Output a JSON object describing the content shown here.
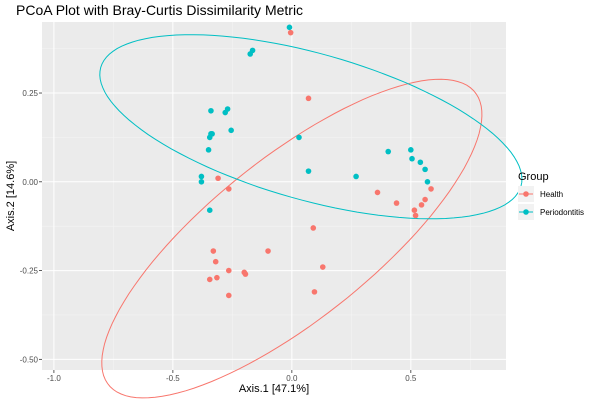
{
  "chart_data": {
    "type": "scatter",
    "title": "PCoA Plot with Bray-Curtis Dissimilarity Metric",
    "xlabel": "Axis.1   [47.1%]",
    "ylabel": "Axis.2   [14.6%]",
    "xlim": [
      -1.05,
      0.9
    ],
    "ylim": [
      -0.53,
      0.45
    ],
    "x_ticks": [
      -1.0,
      -0.5,
      0.0,
      0.5
    ],
    "x_tick_labels": [
      "-1.0",
      "-0.5",
      "0.0",
      "0.5"
    ],
    "y_ticks": [
      -0.5,
      -0.25,
      0.0,
      0.25
    ],
    "y_tick_labels": [
      "-0.50",
      "-0.25",
      "0.00",
      "0.25"
    ],
    "grid": true,
    "legend": {
      "title": "Group",
      "position": "right"
    },
    "series": [
      {
        "name": "Health",
        "color": "#F8766D",
        "points": [
          [
            -0.005,
            0.42
          ],
          [
            0.07,
            0.235
          ],
          [
            -0.31,
            0.01
          ],
          [
            -0.265,
            -0.02
          ],
          [
            0.09,
            -0.13
          ],
          [
            0.36,
            -0.03
          ],
          [
            0.44,
            -0.06
          ],
          [
            0.515,
            -0.08
          ],
          [
            0.545,
            -0.065
          ],
          [
            0.56,
            -0.05
          ],
          [
            0.585,
            -0.02
          ],
          [
            0.52,
            -0.095
          ],
          [
            -0.33,
            -0.195
          ],
          [
            -0.32,
            -0.225
          ],
          [
            -0.265,
            -0.25
          ],
          [
            -0.2,
            -0.255
          ],
          [
            -0.195,
            -0.26
          ],
          [
            -0.1,
            -0.195
          ],
          [
            -0.345,
            -0.275
          ],
          [
            -0.315,
            -0.27
          ],
          [
            -0.265,
            -0.32
          ],
          [
            0.13,
            -0.24
          ],
          [
            0.095,
            -0.31
          ]
        ],
        "ellipse": {
          "cx": 0.0,
          "cy": -0.16,
          "rx": 0.88,
          "ry": 0.255,
          "angle_deg": 26
        }
      },
      {
        "name": "Periodontitis",
        "color": "#00BFC4",
        "points": [
          [
            -0.01,
            0.435
          ],
          [
            -0.165,
            0.37
          ],
          [
            -0.175,
            0.36
          ],
          [
            -0.34,
            0.2
          ],
          [
            -0.28,
            0.195
          ],
          [
            -0.27,
            0.205
          ],
          [
            -0.255,
            0.145
          ],
          [
            -0.34,
            0.135
          ],
          [
            -0.345,
            0.125
          ],
          [
            -0.335,
            0.135
          ],
          [
            -0.35,
            0.09
          ],
          [
            0.03,
            0.125
          ],
          [
            0.07,
            0.03
          ],
          [
            0.27,
            0.015
          ],
          [
            0.405,
            0.085
          ],
          [
            0.5,
            0.09
          ],
          [
            0.505,
            0.065
          ],
          [
            0.54,
            0.055
          ],
          [
            0.56,
            0.035
          ],
          [
            0.57,
            0.0
          ],
          [
            -0.38,
            0.015
          ],
          [
            -0.38,
            0.0
          ],
          [
            -0.345,
            -0.08
          ]
        ],
        "ellipse": {
          "cx": 0.08,
          "cy": 0.155,
          "rx": 0.9,
          "ry": 0.21,
          "angle_deg": -10
        }
      }
    ]
  }
}
